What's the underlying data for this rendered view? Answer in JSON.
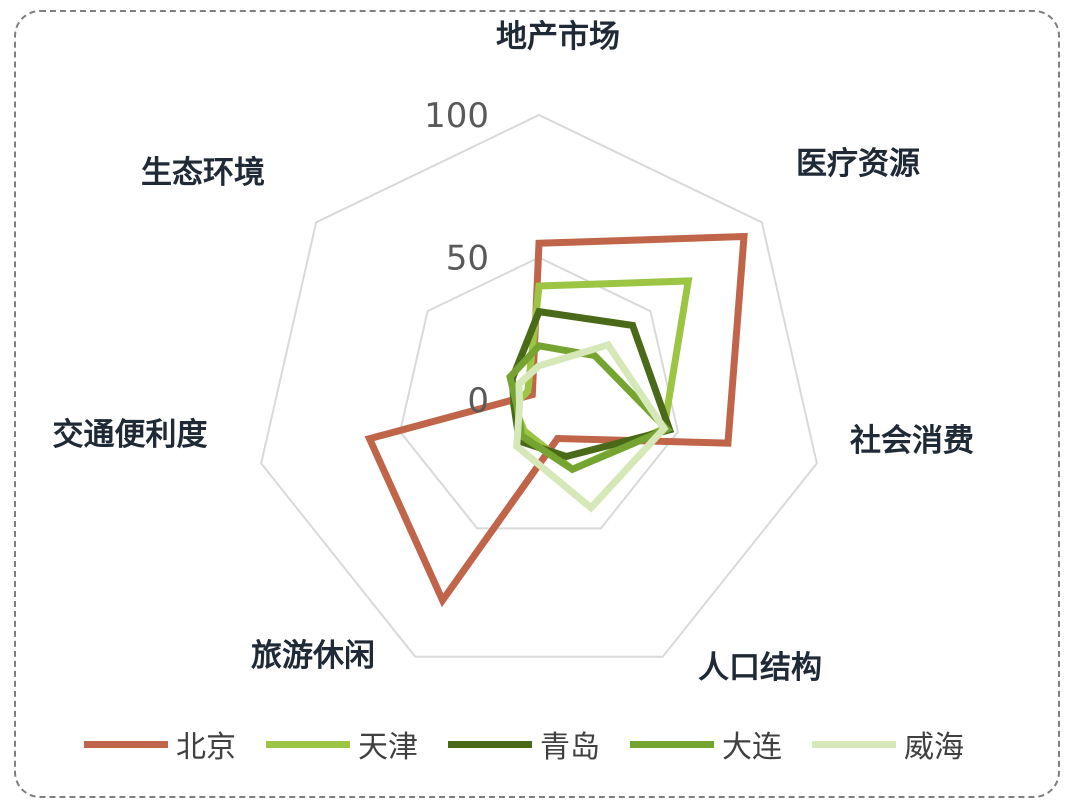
{
  "chart_data": {
    "type": "radar",
    "axes": [
      "地产市场",
      "医疗资源",
      "社会消费",
      "人口结构",
      "旅游休闲",
      "交通便利度",
      "生态环境"
    ],
    "r_ticks": [
      0,
      50,
      100
    ],
    "r_range": [
      0,
      100
    ],
    "grid": true,
    "legend_position": "bottom",
    "series": [
      {
        "name": "北京",
        "color": "#c0654a",
        "values": [
          55,
          92,
          68,
          15,
          78,
          61,
          3
        ]
      },
      {
        "name": "天津",
        "color": "#9dc544",
        "values": [
          40,
          67,
          45,
          27,
          12,
          9,
          5
        ]
      },
      {
        "name": "青岛",
        "color": "#4a6a19",
        "values": [
          31,
          42,
          47,
          22,
          16,
          9,
          12
        ]
      },
      {
        "name": "大连",
        "color": "#76a431",
        "values": [
          19,
          25,
          46,
          27,
          14,
          8,
          13
        ]
      },
      {
        "name": "威海",
        "color": "#d6e8b8",
        "values": [
          12,
          31,
          45,
          42,
          18,
          7,
          9
        ]
      }
    ]
  }
}
